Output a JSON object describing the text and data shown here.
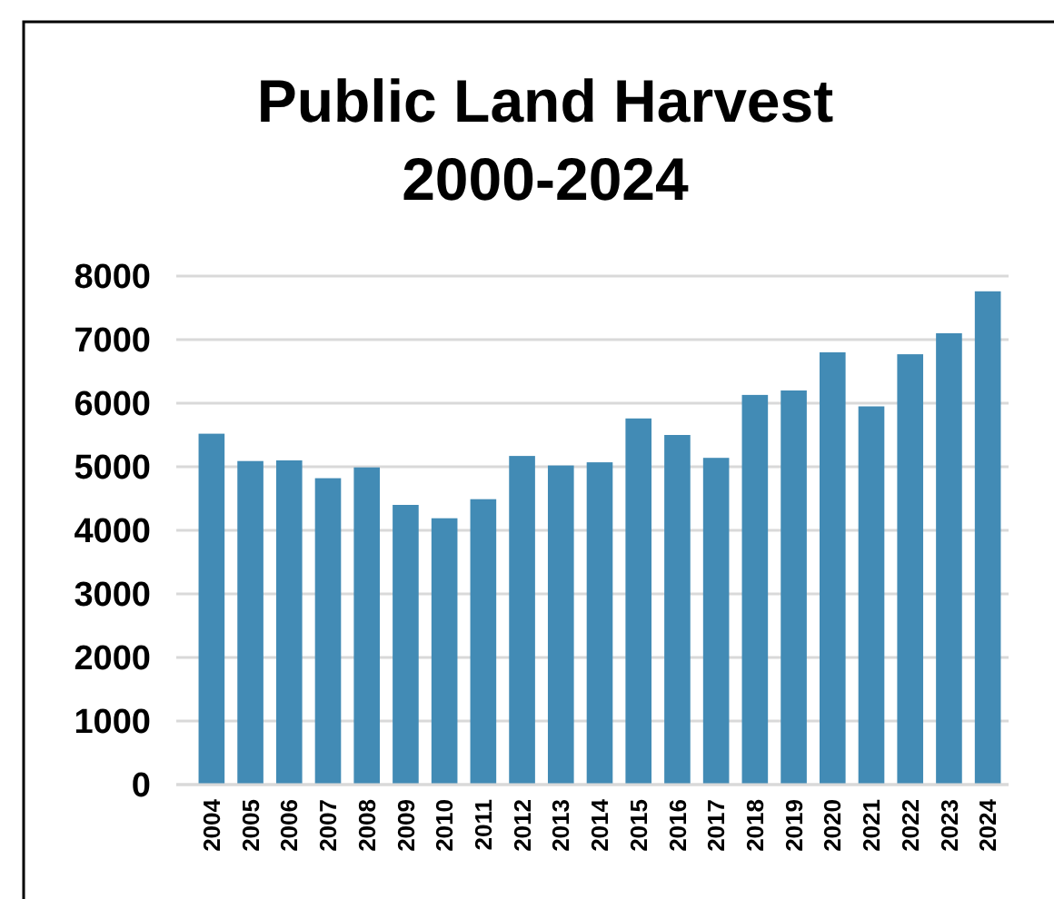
{
  "chart_data": {
    "type": "bar",
    "title": "Public Land Harvest\n2000-2024",
    "categories": [
      "2004",
      "2005",
      "2006",
      "2007",
      "2008",
      "2009",
      "2010",
      "2011",
      "2012",
      "2013",
      "2014",
      "2015",
      "2016",
      "2017",
      "2018",
      "2019",
      "2020",
      "2021",
      "2022",
      "2023",
      "2024"
    ],
    "values": [
      5520,
      5090,
      5100,
      4820,
      4990,
      4400,
      4190,
      4490,
      5170,
      5020,
      5070,
      5760,
      5500,
      5140,
      6130,
      6200,
      6800,
      5950,
      6770,
      7100,
      7760
    ],
    "color": "#428bb5",
    "ylim": [
      0,
      8000
    ],
    "yticks": [
      0,
      1000,
      2000,
      3000,
      4000,
      5000,
      6000,
      7000,
      8000
    ],
    "grid": "y"
  }
}
